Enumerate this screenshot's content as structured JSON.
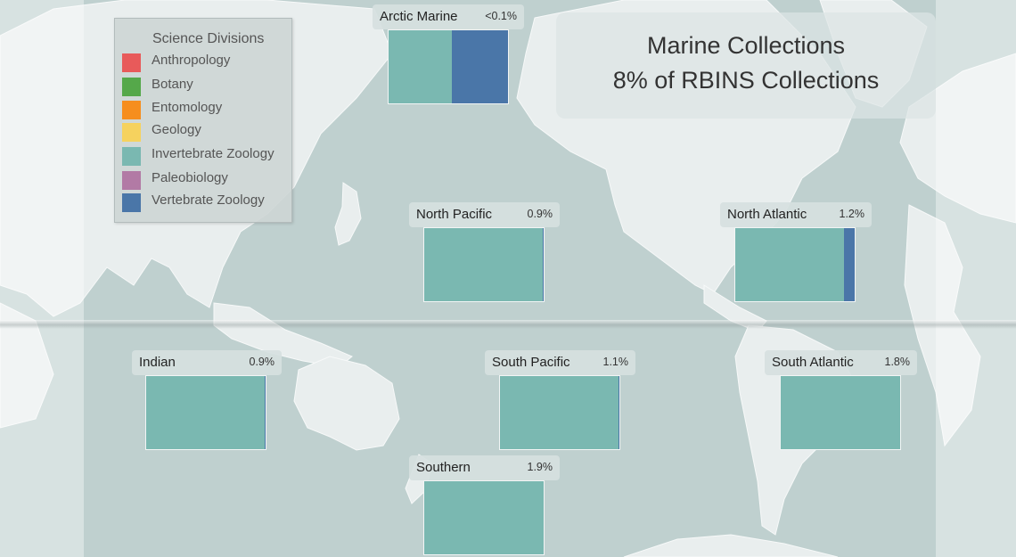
{
  "title": {
    "line1": "Marine Collections",
    "line2": "8% of RBINS Collections"
  },
  "legend": {
    "title": "Science Divisions",
    "items": [
      {
        "label": "Anthropology",
        "color": "#e85a5a"
      },
      {
        "label": "Botany",
        "color": "#55a84a"
      },
      {
        "label": "Entomology",
        "color": "#f68e1e"
      },
      {
        "label": "Geology",
        "color": "#f6d25e"
      },
      {
        "label": "Invertebrate Zoology",
        "color": "#7ab8b1"
      },
      {
        "label": "Paleobiology",
        "color": "#b27aa5"
      },
      {
        "label": "Vertebrate Zoology",
        "color": "#4a76a8"
      }
    ]
  },
  "oceans": [
    {
      "name": "Arctic Marine",
      "pct": "<0.1%",
      "invertebrate_zoology_share": 0.53,
      "vertebrate_zoology_share": 0.47
    },
    {
      "name": "North Pacific",
      "pct": "0.9%",
      "invertebrate_zoology_share": 0.99,
      "vertebrate_zoology_share": 0.01
    },
    {
      "name": "North Atlantic",
      "pct": "1.2%",
      "invertebrate_zoology_share": 0.91,
      "vertebrate_zoology_share": 0.09
    },
    {
      "name": "Indian",
      "pct": "0.9%",
      "invertebrate_zoology_share": 0.99,
      "vertebrate_zoology_share": 0.01
    },
    {
      "name": "South Pacific",
      "pct": "1.1%",
      "invertebrate_zoology_share": 0.995,
      "vertebrate_zoology_share": 0.005
    },
    {
      "name": "South Atlantic",
      "pct": "1.8%",
      "invertebrate_zoology_share": 1.0,
      "vertebrate_zoology_share": 0.0
    },
    {
      "name": "Southern",
      "pct": "1.9%",
      "invertebrate_zoology_share": 1.0,
      "vertebrate_zoology_share": 0.0
    }
  ]
}
